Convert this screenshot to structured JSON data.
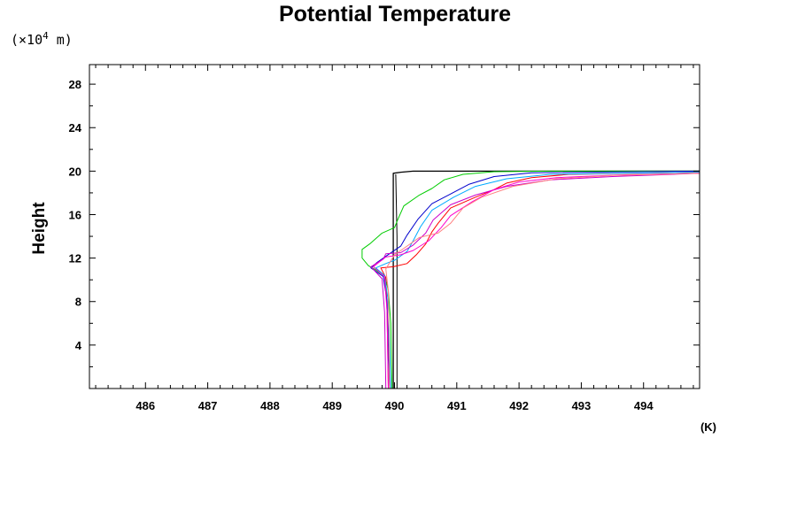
{
  "chart_data": {
    "type": "line",
    "title": "Potential Temperature",
    "ylabel": "Height",
    "yunit_prefix": "(×10",
    "yunit_exp": "4",
    "yunit_suffix": " m)",
    "xunit": "(K)",
    "xlim": [
      485.1,
      494.9
    ],
    "ylim": [
      0,
      29.8
    ],
    "xticks": [
      486,
      487,
      488,
      489,
      490,
      491,
      492,
      493,
      494
    ],
    "xtick_labels": [
      "486",
      "487",
      "488",
      "489",
      "490",
      "491",
      "492",
      "493",
      "494"
    ],
    "yticks": [
      4,
      8,
      12,
      16,
      20,
      24,
      28
    ],
    "ytick_labels": [
      "4",
      "8",
      "12",
      "16",
      "20",
      "24",
      "28"
    ],
    "x_minor_step": 0.2,
    "y_minor_step": 2,
    "grid": false,
    "series": [
      {
        "color": "#000000",
        "width": 1.3,
        "points": [
          [
            489.98,
            0
          ],
          [
            489.98,
            19.8
          ],
          [
            490.1,
            19.9
          ],
          [
            490.3,
            20
          ],
          [
            491,
            20
          ],
          [
            494.9,
            20
          ]
        ]
      },
      {
        "color": "#000000",
        "width": 1,
        "points": [
          [
            490.04,
            0
          ],
          [
            490.04,
            14
          ],
          [
            490.02,
            19.7
          ]
        ]
      },
      {
        "color": "#00cc00",
        "width": 1,
        "points": [
          [
            489.96,
            0
          ],
          [
            489.94,
            6
          ],
          [
            489.9,
            9
          ],
          [
            489.85,
            10.3
          ],
          [
            489.7,
            10.9
          ],
          [
            489.58,
            11.3
          ],
          [
            489.48,
            12
          ],
          [
            489.48,
            12.8
          ],
          [
            489.6,
            13.3
          ],
          [
            489.8,
            14.3
          ],
          [
            490.0,
            14.8
          ],
          [
            490.05,
            15.5
          ],
          [
            490.15,
            16.8
          ],
          [
            490.4,
            17.8
          ],
          [
            490.6,
            18.4
          ],
          [
            490.8,
            19.2
          ],
          [
            491.1,
            19.7
          ],
          [
            491.6,
            19.95
          ],
          [
            492.5,
            20
          ],
          [
            494.9,
            20
          ]
        ]
      },
      {
        "color": "#ff0000",
        "width": 1,
        "points": [
          [
            489.9,
            0
          ],
          [
            489.88,
            7
          ],
          [
            489.86,
            10.2
          ],
          [
            489.78,
            11.1
          ],
          [
            489.98,
            11.2
          ],
          [
            490.2,
            11.5
          ],
          [
            490.35,
            12.3
          ],
          [
            490.5,
            13.3
          ],
          [
            490.6,
            14.4
          ],
          [
            490.7,
            15.2
          ],
          [
            490.9,
            16.6
          ],
          [
            491.3,
            17.6
          ],
          [
            491.6,
            18.3
          ],
          [
            491.8,
            18.9
          ],
          [
            492.2,
            19.4
          ],
          [
            492.8,
            19.7
          ],
          [
            494.9,
            19.9
          ]
        ]
      },
      {
        "color": "#0000cc",
        "width": 1,
        "points": [
          [
            489.92,
            0
          ],
          [
            489.88,
            8
          ],
          [
            489.82,
            10.3
          ],
          [
            489.62,
            11.1
          ],
          [
            489.72,
            11.6
          ],
          [
            489.92,
            12.4
          ],
          [
            490.1,
            13.1
          ],
          [
            490.2,
            14.1
          ],
          [
            490.38,
            15.6
          ],
          [
            490.6,
            17.0
          ],
          [
            490.9,
            17.9
          ],
          [
            491.2,
            18.8
          ],
          [
            491.6,
            19.5
          ],
          [
            492.2,
            19.85
          ],
          [
            494.9,
            20
          ]
        ]
      },
      {
        "color": "#00aaff",
        "width": 1,
        "points": [
          [
            489.94,
            0
          ],
          [
            489.9,
            8
          ],
          [
            489.84,
            10.4
          ],
          [
            489.7,
            11.1
          ],
          [
            489.86,
            11.5
          ],
          [
            490.0,
            11.8
          ],
          [
            490.2,
            12.6
          ],
          [
            490.3,
            13.6
          ],
          [
            490.42,
            14.9
          ],
          [
            490.6,
            16.4
          ],
          [
            490.95,
            17.6
          ],
          [
            491.3,
            18.6
          ],
          [
            491.8,
            19.3
          ],
          [
            492.5,
            19.7
          ],
          [
            494.9,
            19.9
          ]
        ]
      },
      {
        "color": "#cc00cc",
        "width": 1,
        "points": [
          [
            489.86,
            0
          ],
          [
            489.84,
            7
          ],
          [
            489.8,
            10.1
          ],
          [
            489.62,
            11.2
          ],
          [
            489.82,
            11.9
          ],
          [
            489.86,
            12.4
          ],
          [
            490.1,
            12.5
          ],
          [
            490.3,
            13.2
          ],
          [
            490.5,
            14.3
          ],
          [
            490.62,
            15.5
          ],
          [
            490.9,
            16.9
          ],
          [
            491.3,
            17.8
          ],
          [
            491.8,
            18.6
          ],
          [
            492.5,
            19.2
          ],
          [
            493.5,
            19.5
          ],
          [
            494.9,
            19.8
          ]
        ]
      },
      {
        "color": "#ff00cc",
        "width": 1,
        "points": [
          [
            489.9,
            0
          ],
          [
            489.88,
            7
          ],
          [
            489.84,
            10.3
          ],
          [
            489.66,
            11.2
          ],
          [
            489.86,
            12.1
          ],
          [
            490.1,
            12.3
          ],
          [
            490.3,
            12.7
          ],
          [
            490.55,
            13.6
          ],
          [
            490.75,
            14.8
          ],
          [
            490.9,
            15.9
          ],
          [
            491.25,
            17.2
          ],
          [
            491.6,
            18.3
          ],
          [
            492.0,
            19.0
          ],
          [
            492.6,
            19.4
          ],
          [
            493.6,
            19.65
          ],
          [
            494.9,
            19.8
          ]
        ]
      },
      {
        "color": "#ff8080",
        "width": 1,
        "points": [
          [
            489.92,
            0
          ],
          [
            489.9,
            9
          ],
          [
            489.86,
            11.0
          ],
          [
            490.0,
            12.3
          ],
          [
            490.2,
            13.1
          ],
          [
            490.4,
            13.9
          ],
          [
            490.7,
            14.3
          ],
          [
            490.9,
            15.2
          ],
          [
            491.1,
            16.6
          ],
          [
            491.4,
            17.6
          ],
          [
            491.9,
            18.6
          ],
          [
            492.6,
            19.3
          ],
          [
            493.5,
            19.6
          ],
          [
            494.9,
            19.8
          ]
        ]
      }
    ]
  }
}
